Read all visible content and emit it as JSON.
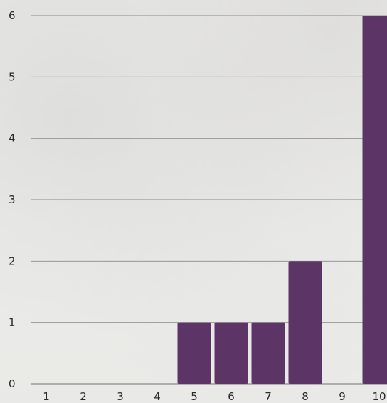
{
  "chart_data": {
    "type": "bar",
    "categories": [
      "1",
      "2",
      "3",
      "4",
      "5",
      "6",
      "7",
      "8",
      "9",
      "10"
    ],
    "values": [
      0,
      0,
      0,
      0,
      1,
      1,
      1,
      2,
      0,
      6
    ],
    "title": "",
    "xlabel": "",
    "ylabel": "",
    "ylim": [
      0,
      6
    ],
    "yticks": [
      "0",
      "1",
      "2",
      "3",
      "4",
      "5",
      "6"
    ],
    "grid": true,
    "legend": "none",
    "bar_color": "#5c3566",
    "grid_color": "#8a8a8a"
  }
}
